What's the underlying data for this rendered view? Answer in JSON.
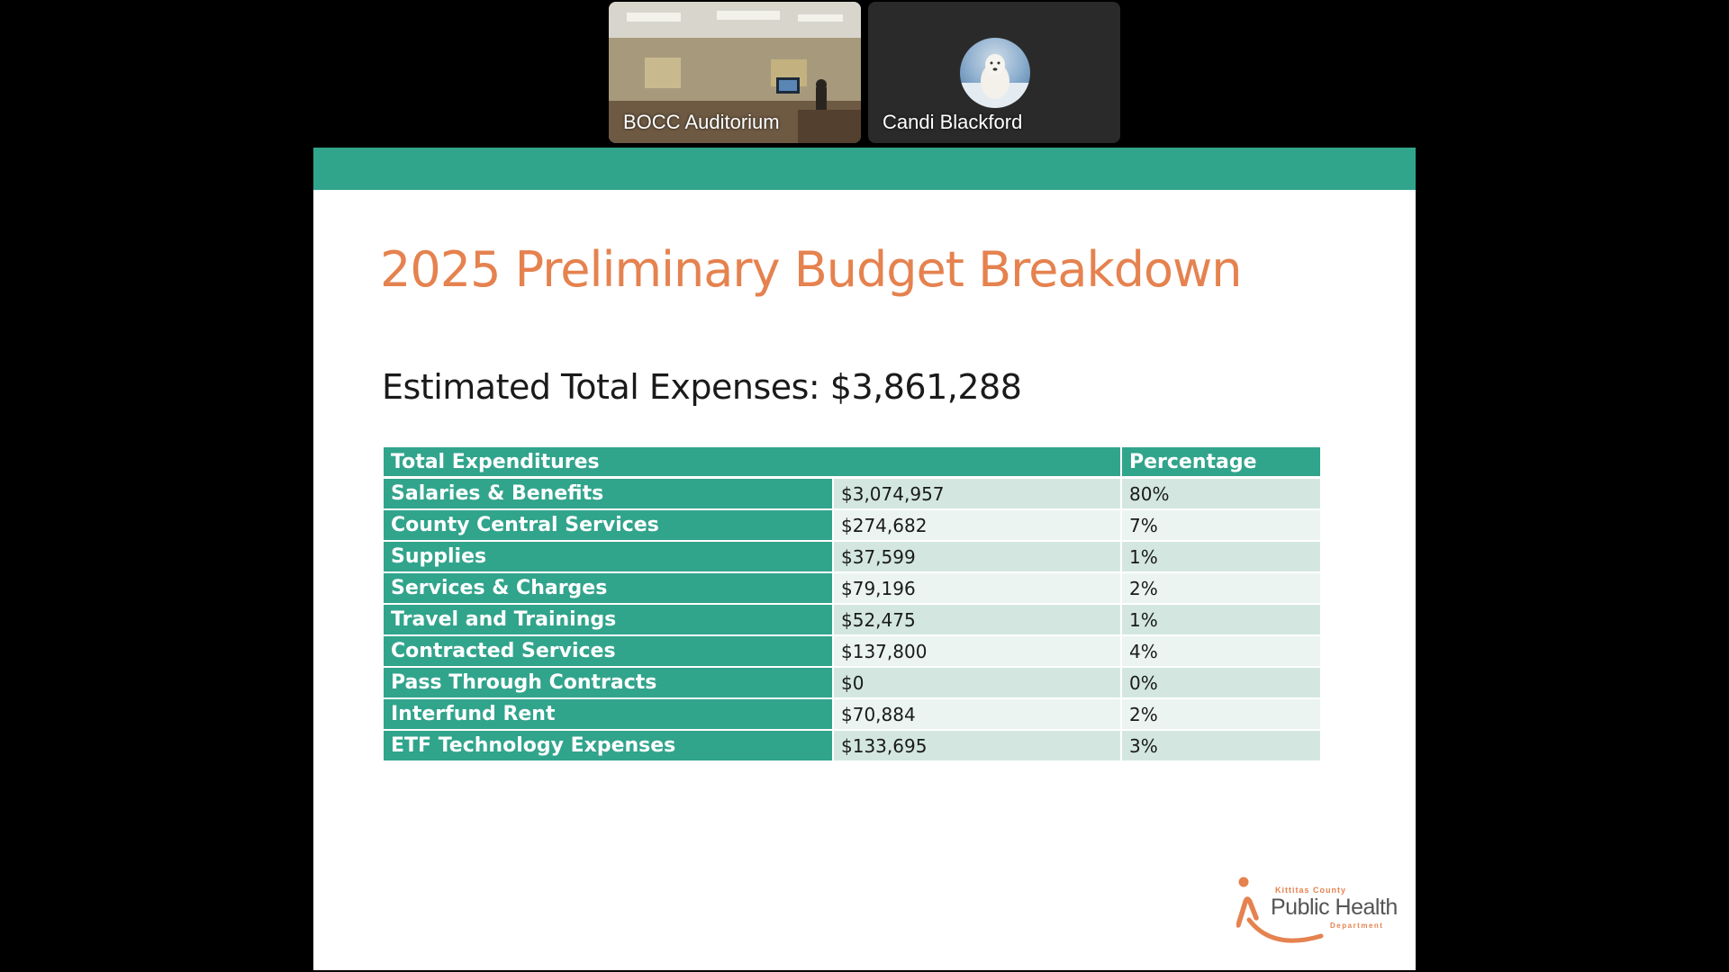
{
  "participants": [
    {
      "name": "BOCC Auditorium"
    },
    {
      "name": "Candi Blackford"
    }
  ],
  "slide": {
    "title": "2025 Preliminary Budget Breakdown",
    "subtitle": "Estimated Total Expenses: $3,861,288",
    "table": {
      "headers": [
        "Total Expenditures",
        "Percentage"
      ],
      "rows": [
        {
          "label": "Salaries & Benefits",
          "amount": "$3,074,957",
          "percent": "80%"
        },
        {
          "label": "County Central Services",
          "amount": "$274,682",
          "percent": "7%"
        },
        {
          "label": "Supplies",
          "amount": "$37,599",
          "percent": "1%"
        },
        {
          "label": "Services & Charges",
          "amount": "$79,196",
          "percent": "2%"
        },
        {
          "label": "Travel and Trainings",
          "amount": "$52,475",
          "percent": "1%"
        },
        {
          "label": "Contracted Services",
          "amount": "$137,800",
          "percent": "4%"
        },
        {
          "label": "Pass Through Contracts",
          "amount": "$0",
          "percent": "0%"
        },
        {
          "label": "Interfund Rent",
          "amount": "$70,884",
          "percent": "2%"
        },
        {
          "label": "ETF Technology Expenses",
          "amount": "$133,695",
          "percent": "3%"
        }
      ]
    },
    "logo": {
      "county": "Kittitas County",
      "name": "Public Health",
      "department": "Department"
    }
  },
  "colors": {
    "accent_teal": "#31a48c",
    "title_orange": "#e5824f",
    "row_light": "#ebf4f1",
    "row_mid": "#d3e7e0"
  }
}
